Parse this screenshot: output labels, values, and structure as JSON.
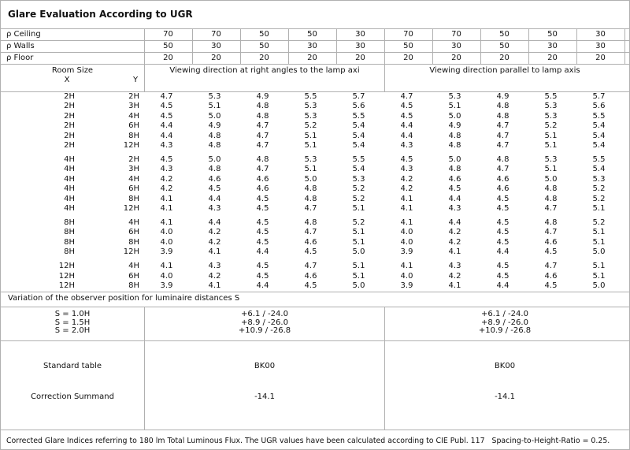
{
  "title": "Glare Evaluation According to UGR",
  "reflectance": {
    "rows": [
      {
        "label": "ρ Ceiling",
        "values": [
          70,
          70,
          50,
          50,
          30,
          70,
          70,
          50,
          50,
          30
        ]
      },
      {
        "label": "ρ Walls",
        "values": [
          50,
          30,
          50,
          30,
          30,
          50,
          30,
          50,
          30,
          30
        ]
      },
      {
        "label": "ρ Floor",
        "values": [
          20,
          20,
          20,
          20,
          20,
          20,
          20,
          20,
          20,
          20
        ]
      }
    ]
  },
  "header": {
    "room_size": "Room Size",
    "x": "X",
    "y": "Y",
    "left": "Viewing direction at right angles to the lamp axi",
    "right": "Viewing direction parallel to lamp axis"
  },
  "groups": [
    [
      {
        "x": "2H",
        "y": "2H",
        "values": [
          "4.7",
          "5.3",
          "4.9",
          "5.5",
          "5.7",
          "4.7",
          "5.3",
          "4.9",
          "5.5",
          "5.7"
        ]
      },
      {
        "x": "2H",
        "y": "3H",
        "values": [
          "4.5",
          "5.1",
          "4.8",
          "5.3",
          "5.6",
          "4.5",
          "5.1",
          "4.8",
          "5.3",
          "5.6"
        ]
      },
      {
        "x": "2H",
        "y": "4H",
        "values": [
          "4.5",
          "5.0",
          "4.8",
          "5.3",
          "5.5",
          "4.5",
          "5.0",
          "4.8",
          "5.3",
          "5.5"
        ]
      },
      {
        "x": "2H",
        "y": "6H",
        "values": [
          "4.4",
          "4.9",
          "4.7",
          "5.2",
          "5.4",
          "4.4",
          "4.9",
          "4.7",
          "5.2",
          "5.4"
        ]
      },
      {
        "x": "2H",
        "y": "8H",
        "values": [
          "4.4",
          "4.8",
          "4.7",
          "5.1",
          "5.4",
          "4.4",
          "4.8",
          "4.7",
          "5.1",
          "5.4"
        ]
      },
      {
        "x": "2H",
        "y": "12H",
        "values": [
          "4.3",
          "4.8",
          "4.7",
          "5.1",
          "5.4",
          "4.3",
          "4.8",
          "4.7",
          "5.1",
          "5.4"
        ]
      }
    ],
    [
      {
        "x": "4H",
        "y": "2H",
        "values": [
          "4.5",
          "5.0",
          "4.8",
          "5.3",
          "5.5",
          "4.5",
          "5.0",
          "4.8",
          "5.3",
          "5.5"
        ]
      },
      {
        "x": "4H",
        "y": "3H",
        "values": [
          "4.3",
          "4.8",
          "4.7",
          "5.1",
          "5.4",
          "4.3",
          "4.8",
          "4.7",
          "5.1",
          "5.4"
        ]
      },
      {
        "x": "4H",
        "y": "4H",
        "values": [
          "4.2",
          "4.6",
          "4.6",
          "5.0",
          "5.3",
          "4.2",
          "4.6",
          "4.6",
          "5.0",
          "5.3"
        ]
      },
      {
        "x": "4H",
        "y": "6H",
        "values": [
          "4.2",
          "4.5",
          "4.6",
          "4.8",
          "5.2",
          "4.2",
          "4.5",
          "4.6",
          "4.8",
          "5.2"
        ]
      },
      {
        "x": "4H",
        "y": "8H",
        "values": [
          "4.1",
          "4.4",
          "4.5",
          "4.8",
          "5.2",
          "4.1",
          "4.4",
          "4.5",
          "4.8",
          "5.2"
        ]
      },
      {
        "x": "4H",
        "y": "12H",
        "values": [
          "4.1",
          "4.3",
          "4.5",
          "4.7",
          "5.1",
          "4.1",
          "4.3",
          "4.5",
          "4.7",
          "5.1"
        ]
      }
    ],
    [
      {
        "x": "8H",
        "y": "4H",
        "values": [
          "4.1",
          "4.4",
          "4.5",
          "4.8",
          "5.2",
          "4.1",
          "4.4",
          "4.5",
          "4.8",
          "5.2"
        ]
      },
      {
        "x": "8H",
        "y": "6H",
        "values": [
          "4.0",
          "4.2",
          "4.5",
          "4.7",
          "5.1",
          "4.0",
          "4.2",
          "4.5",
          "4.7",
          "5.1"
        ]
      },
      {
        "x": "8H",
        "y": "8H",
        "values": [
          "4.0",
          "4.2",
          "4.5",
          "4.6",
          "5.1",
          "4.0",
          "4.2",
          "4.5",
          "4.6",
          "5.1"
        ]
      },
      {
        "x": "8H",
        "y": "12H",
        "values": [
          "3.9",
          "4.1",
          "4.4",
          "4.5",
          "5.0",
          "3.9",
          "4.1",
          "4.4",
          "4.5",
          "5.0"
        ]
      }
    ],
    [
      {
        "x": "12H",
        "y": "4H",
        "values": [
          "4.1",
          "4.3",
          "4.5",
          "4.7",
          "5.1",
          "4.1",
          "4.3",
          "4.5",
          "4.7",
          "5.1"
        ]
      },
      {
        "x": "12H",
        "y": "6H",
        "values": [
          "4.0",
          "4.2",
          "4.5",
          "4.6",
          "5.1",
          "4.0",
          "4.2",
          "4.5",
          "4.6",
          "5.1"
        ]
      },
      {
        "x": "12H",
        "y": "8H",
        "values": [
          "3.9",
          "4.1",
          "4.4",
          "4.5",
          "5.0",
          "3.9",
          "4.1",
          "4.4",
          "4.5",
          "5.0"
        ]
      }
    ]
  ],
  "variation": {
    "title": "Variation of the observer position for luminaire distances S",
    "rows": [
      {
        "label": "S = 1.0H",
        "left": "+6.1 / -24.0",
        "right": "+6.1 / -24.0"
      },
      {
        "label": "S = 1.5H",
        "left": "+8.9 / -26.0",
        "right": "+8.9 / -26.0"
      },
      {
        "label": "S = 2.0H",
        "left": "+10.9 / -26.8",
        "right": "+10.9 / -26.8"
      }
    ]
  },
  "standard_table": {
    "label": "Standard table",
    "left": "BK00",
    "right": "BK00"
  },
  "correction_summand": {
    "label": "Correction Summand",
    "left": "-14.1",
    "right": "-14.1"
  },
  "footer": "Corrected Glare Indices referring to 180 lm Total Luminous Flux. The UGR values have been calculated according to CIE Publ. 117   Spacing-to-Height-Ratio = 0.25."
}
